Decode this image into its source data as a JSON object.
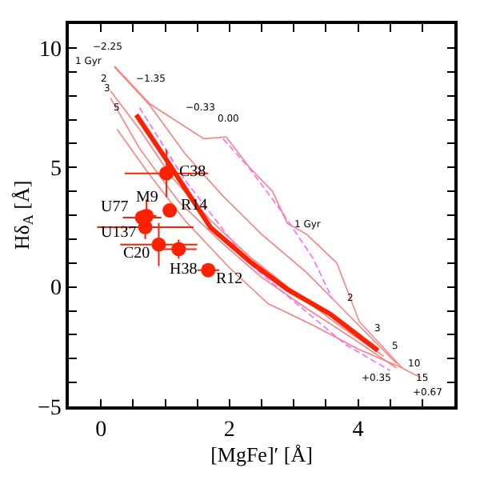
{
  "chart_data": {
    "type": "line",
    "xlabel": "[MgFe]′ [Å]",
    "ylabel": "Hδ$_{A}$ [Å]",
    "xlim": [
      -0.5,
      5.5
    ],
    "ylim": [
      -5,
      11
    ],
    "xticks": [
      {
        "value": -0.5,
        "label": null
      },
      0,
      {
        "value": 0.5,
        "label": null
      },
      {
        "value": 1,
        "label": null
      },
      {
        "value": 1.5,
        "label": null
      },
      2,
      {
        "value": 2.5,
        "label": null
      },
      {
        "value": 3,
        "label": null
      },
      {
        "value": 3.5,
        "label": null
      },
      4,
      {
        "value": 4.5,
        "label": null
      },
      {
        "value": 5,
        "label": null
      }
    ],
    "yticks": [
      -5,
      {
        "value": -4,
        "label": null
      },
      {
        "value": -3,
        "label": null
      },
      {
        "value": -2,
        "label": null
      },
      {
        "value": -1,
        "label": null
      },
      0,
      {
        "value": 1,
        "label": null
      },
      {
        "value": 2,
        "label": null
      },
      {
        "value": 3,
        "label": null
      },
      {
        "value": 4,
        "label": null
      },
      5,
      {
        "value": 6,
        "label": null
      },
      {
        "value": 7,
        "label": null
      },
      {
        "value": 8,
        "label": null
      },
      {
        "value": 9,
        "label": null
      },
      10
    ],
    "series": [
      {
        "color": "#ff7f7f",
        "x": [
          0.21,
          0.76,
          1.6,
          1.95,
          2.31,
          2.67,
          2.9,
          3.2,
          3.67,
          4.02,
          4.69,
          4.98
        ],
        "values": [
          9.24,
          7.66,
          6.2,
          6.27,
          5.0,
          4.0,
          2.66,
          2.2,
          1.0,
          -1.45,
          -3.4,
          -3.8
        ]
      },
      {
        "color": "#ff7f7f",
        "x": [
          0.21,
          0.76,
          1.3,
          1.9,
          2.5,
          3.2,
          3.9,
          4.6
        ],
        "values": [
          9.2,
          7.6,
          5.6,
          3.8,
          2.2,
          0.6,
          -1.3,
          -3.2
        ]
      },
      {
        "color": "#ff7f7f",
        "x": [
          0.15,
          0.6,
          1.1,
          1.7,
          2.3,
          3.0,
          3.7,
          4.4
        ],
        "values": [
          8.2,
          6.6,
          4.6,
          2.8,
          1.3,
          -0.2,
          -1.6,
          -2.9
        ]
      },
      {
        "color": "#ff7f7f",
        "x": [
          0.15,
          0.6,
          1.2,
          1.9,
          2.5,
          3.2,
          4.0,
          4.6
        ],
        "values": [
          7.9,
          5.8,
          3.6,
          1.8,
          0.4,
          -0.9,
          -2.3,
          -3.4
        ]
      },
      {
        "color": "#ff7f7f",
        "x": [
          0.25,
          0.7,
          1.3,
          2.0,
          2.6,
          3.3,
          4.0,
          4.7
        ],
        "values": [
          6.6,
          4.9,
          2.8,
          0.8,
          -0.7,
          -1.6,
          -2.6,
          -3.4
        ]
      },
      {
        "color": "#ff66ff",
        "line_style": "dashed",
        "x": [
          1.9,
          2.3,
          2.8,
          3.3,
          3.6
        ],
        "values": [
          6.2,
          5.0,
          3.2,
          1.2,
          -0.5
        ]
      },
      {
        "color": "#ff66ff",
        "line_style": "dashed",
        "x": [
          0.6,
          1.3,
          2.3,
          3.0,
          3.8,
          4.5
        ],
        "values": [
          7.5,
          4.5,
          1.0,
          -0.6,
          -2.4,
          -3.5
        ]
      },
      {
        "color": "#ff2000",
        "x": [
          0.55,
          1.0,
          1.71,
          2.31,
          2.9,
          3.57,
          4.31
        ],
        "values": [
          7.2,
          5.4,
          2.47,
          1.08,
          -0.1,
          -1.14,
          -2.66
        ]
      },
      {
        "type": "scatter",
        "color": "#ff2000",
        "marker": "circle",
        "x": [
          1.02,
          0.71,
          0.64,
          1.07,
          0.69,
          0.9,
          1.21,
          1.67
        ],
        "values": [
          4.75,
          2.97,
          2.9,
          3.2,
          2.5,
          1.77,
          1.58,
          0.7
        ],
        "xerrors": [
          0.65,
          0.15,
          0.3,
          null,
          0.75,
          0.6,
          0.28,
          0.17
        ],
        "errors": [
          1.0,
          0.7,
          0.3,
          null,
          0.5,
          0.9,
          0.4,
          null
        ]
      }
    ],
    "annotations": [
      {
        "text": "C38",
        "x": 1.02,
        "y": 4.75
      },
      {
        "text": "M9",
        "x": 0.71,
        "y": 2.97
      },
      {
        "text": "U77",
        "x": 0.64,
        "y": 2.9
      },
      {
        "text": "R14",
        "x": 1.07,
        "y": 3.2
      },
      {
        "text": "U137",
        "x": 0.69,
        "y": 2.5
      },
      {
        "text": "C20",
        "x": 0.9,
        "y": 1.77
      },
      {
        "text": "H38",
        "x": 1.21,
        "y": 1.58
      },
      {
        "text": "R12",
        "x": 1.67,
        "y": 0.7
      },
      "−2.25",
      "1 Gyr",
      "2",
      "3",
      "5",
      "−1.35",
      "−0.33",
      "0.00",
      "1 Gyr",
      "2",
      "3",
      "5",
      "10",
      "15",
      "+0.35",
      "+0.67"
    ]
  }
}
